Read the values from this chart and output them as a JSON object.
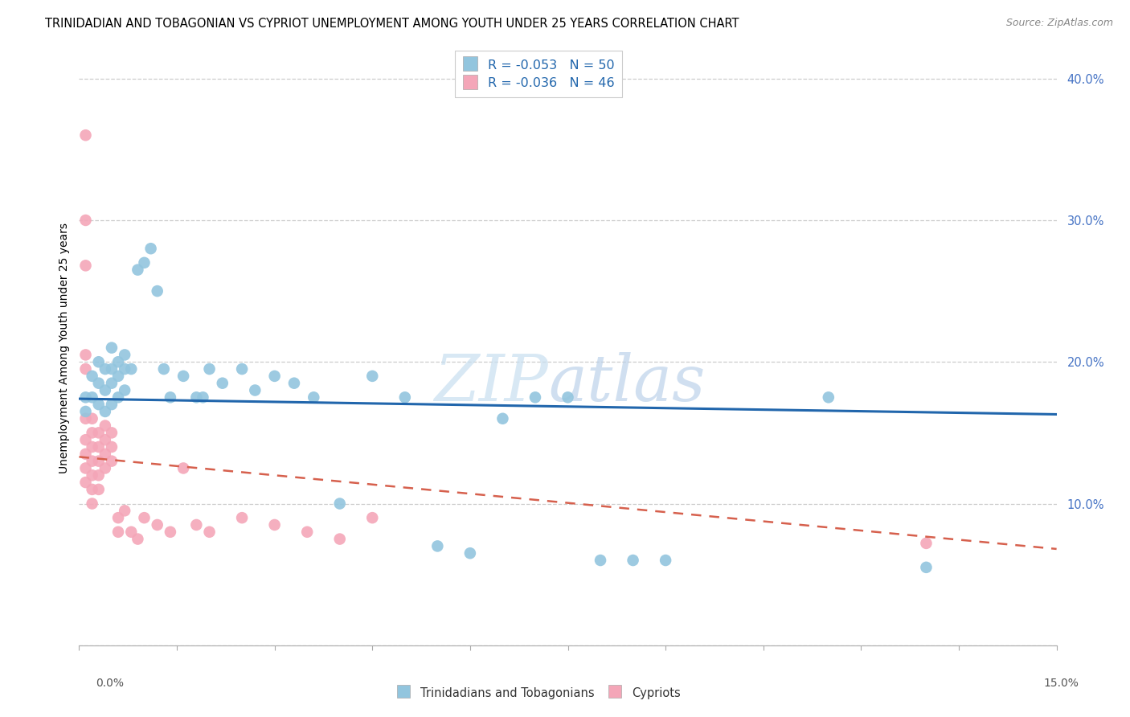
{
  "title": "TRINIDADIAN AND TOBAGONIAN VS CYPRIOT UNEMPLOYMENT AMONG YOUTH UNDER 25 YEARS CORRELATION CHART",
  "source": "Source: ZipAtlas.com",
  "ylabel": "Unemployment Among Youth under 25 years",
  "legend_label1": "Trinidadians and Tobagonians",
  "legend_label2": "Cypriots",
  "watermark_part1": "ZIP",
  "watermark_part2": "atlas",
  "blue_color": "#92c5de",
  "pink_color": "#f4a6b8",
  "blue_line_color": "#2166ac",
  "pink_line_color": "#d6604d",
  "xlim": [
    0.0,
    0.15
  ],
  "ylim": [
    0.0,
    0.42
  ],
  "blue_trend_x0": 0.0,
  "blue_trend_y0": 0.174,
  "blue_trend_x1": 0.15,
  "blue_trend_y1": 0.163,
  "pink_trend_x0": 0.0,
  "pink_trend_y0": 0.133,
  "pink_trend_x1": 0.15,
  "pink_trend_y1": 0.068,
  "blue_x": [
    0.001,
    0.001,
    0.002,
    0.002,
    0.003,
    0.003,
    0.003,
    0.004,
    0.004,
    0.004,
    0.005,
    0.005,
    0.005,
    0.005,
    0.006,
    0.006,
    0.006,
    0.007,
    0.007,
    0.007,
    0.008,
    0.009,
    0.01,
    0.011,
    0.012,
    0.013,
    0.014,
    0.016,
    0.018,
    0.019,
    0.02,
    0.022,
    0.025,
    0.027,
    0.03,
    0.033,
    0.036,
    0.04,
    0.045,
    0.05,
    0.055,
    0.06,
    0.065,
    0.07,
    0.075,
    0.08,
    0.085,
    0.09,
    0.115,
    0.13
  ],
  "blue_y": [
    0.175,
    0.165,
    0.19,
    0.175,
    0.2,
    0.185,
    0.17,
    0.195,
    0.18,
    0.165,
    0.21,
    0.195,
    0.185,
    0.17,
    0.2,
    0.19,
    0.175,
    0.205,
    0.195,
    0.18,
    0.195,
    0.265,
    0.27,
    0.28,
    0.25,
    0.195,
    0.175,
    0.19,
    0.175,
    0.175,
    0.195,
    0.185,
    0.195,
    0.18,
    0.19,
    0.185,
    0.175,
    0.1,
    0.19,
    0.175,
    0.07,
    0.065,
    0.16,
    0.175,
    0.175,
    0.06,
    0.06,
    0.06,
    0.175,
    0.055
  ],
  "pink_x": [
    0.001,
    0.001,
    0.001,
    0.001,
    0.001,
    0.001,
    0.001,
    0.001,
    0.001,
    0.001,
    0.002,
    0.002,
    0.002,
    0.002,
    0.002,
    0.002,
    0.002,
    0.003,
    0.003,
    0.003,
    0.003,
    0.003,
    0.004,
    0.004,
    0.004,
    0.004,
    0.005,
    0.005,
    0.005,
    0.006,
    0.006,
    0.007,
    0.008,
    0.009,
    0.01,
    0.012,
    0.014,
    0.016,
    0.018,
    0.02,
    0.025,
    0.03,
    0.035,
    0.04,
    0.045,
    0.13
  ],
  "pink_y": [
    0.36,
    0.3,
    0.268,
    0.205,
    0.195,
    0.16,
    0.145,
    0.135,
    0.125,
    0.115,
    0.16,
    0.15,
    0.14,
    0.13,
    0.12,
    0.11,
    0.1,
    0.15,
    0.14,
    0.13,
    0.12,
    0.11,
    0.155,
    0.145,
    0.135,
    0.125,
    0.15,
    0.14,
    0.13,
    0.09,
    0.08,
    0.095,
    0.08,
    0.075,
    0.09,
    0.085,
    0.08,
    0.125,
    0.085,
    0.08,
    0.09,
    0.085,
    0.08,
    0.075,
    0.09,
    0.072
  ]
}
